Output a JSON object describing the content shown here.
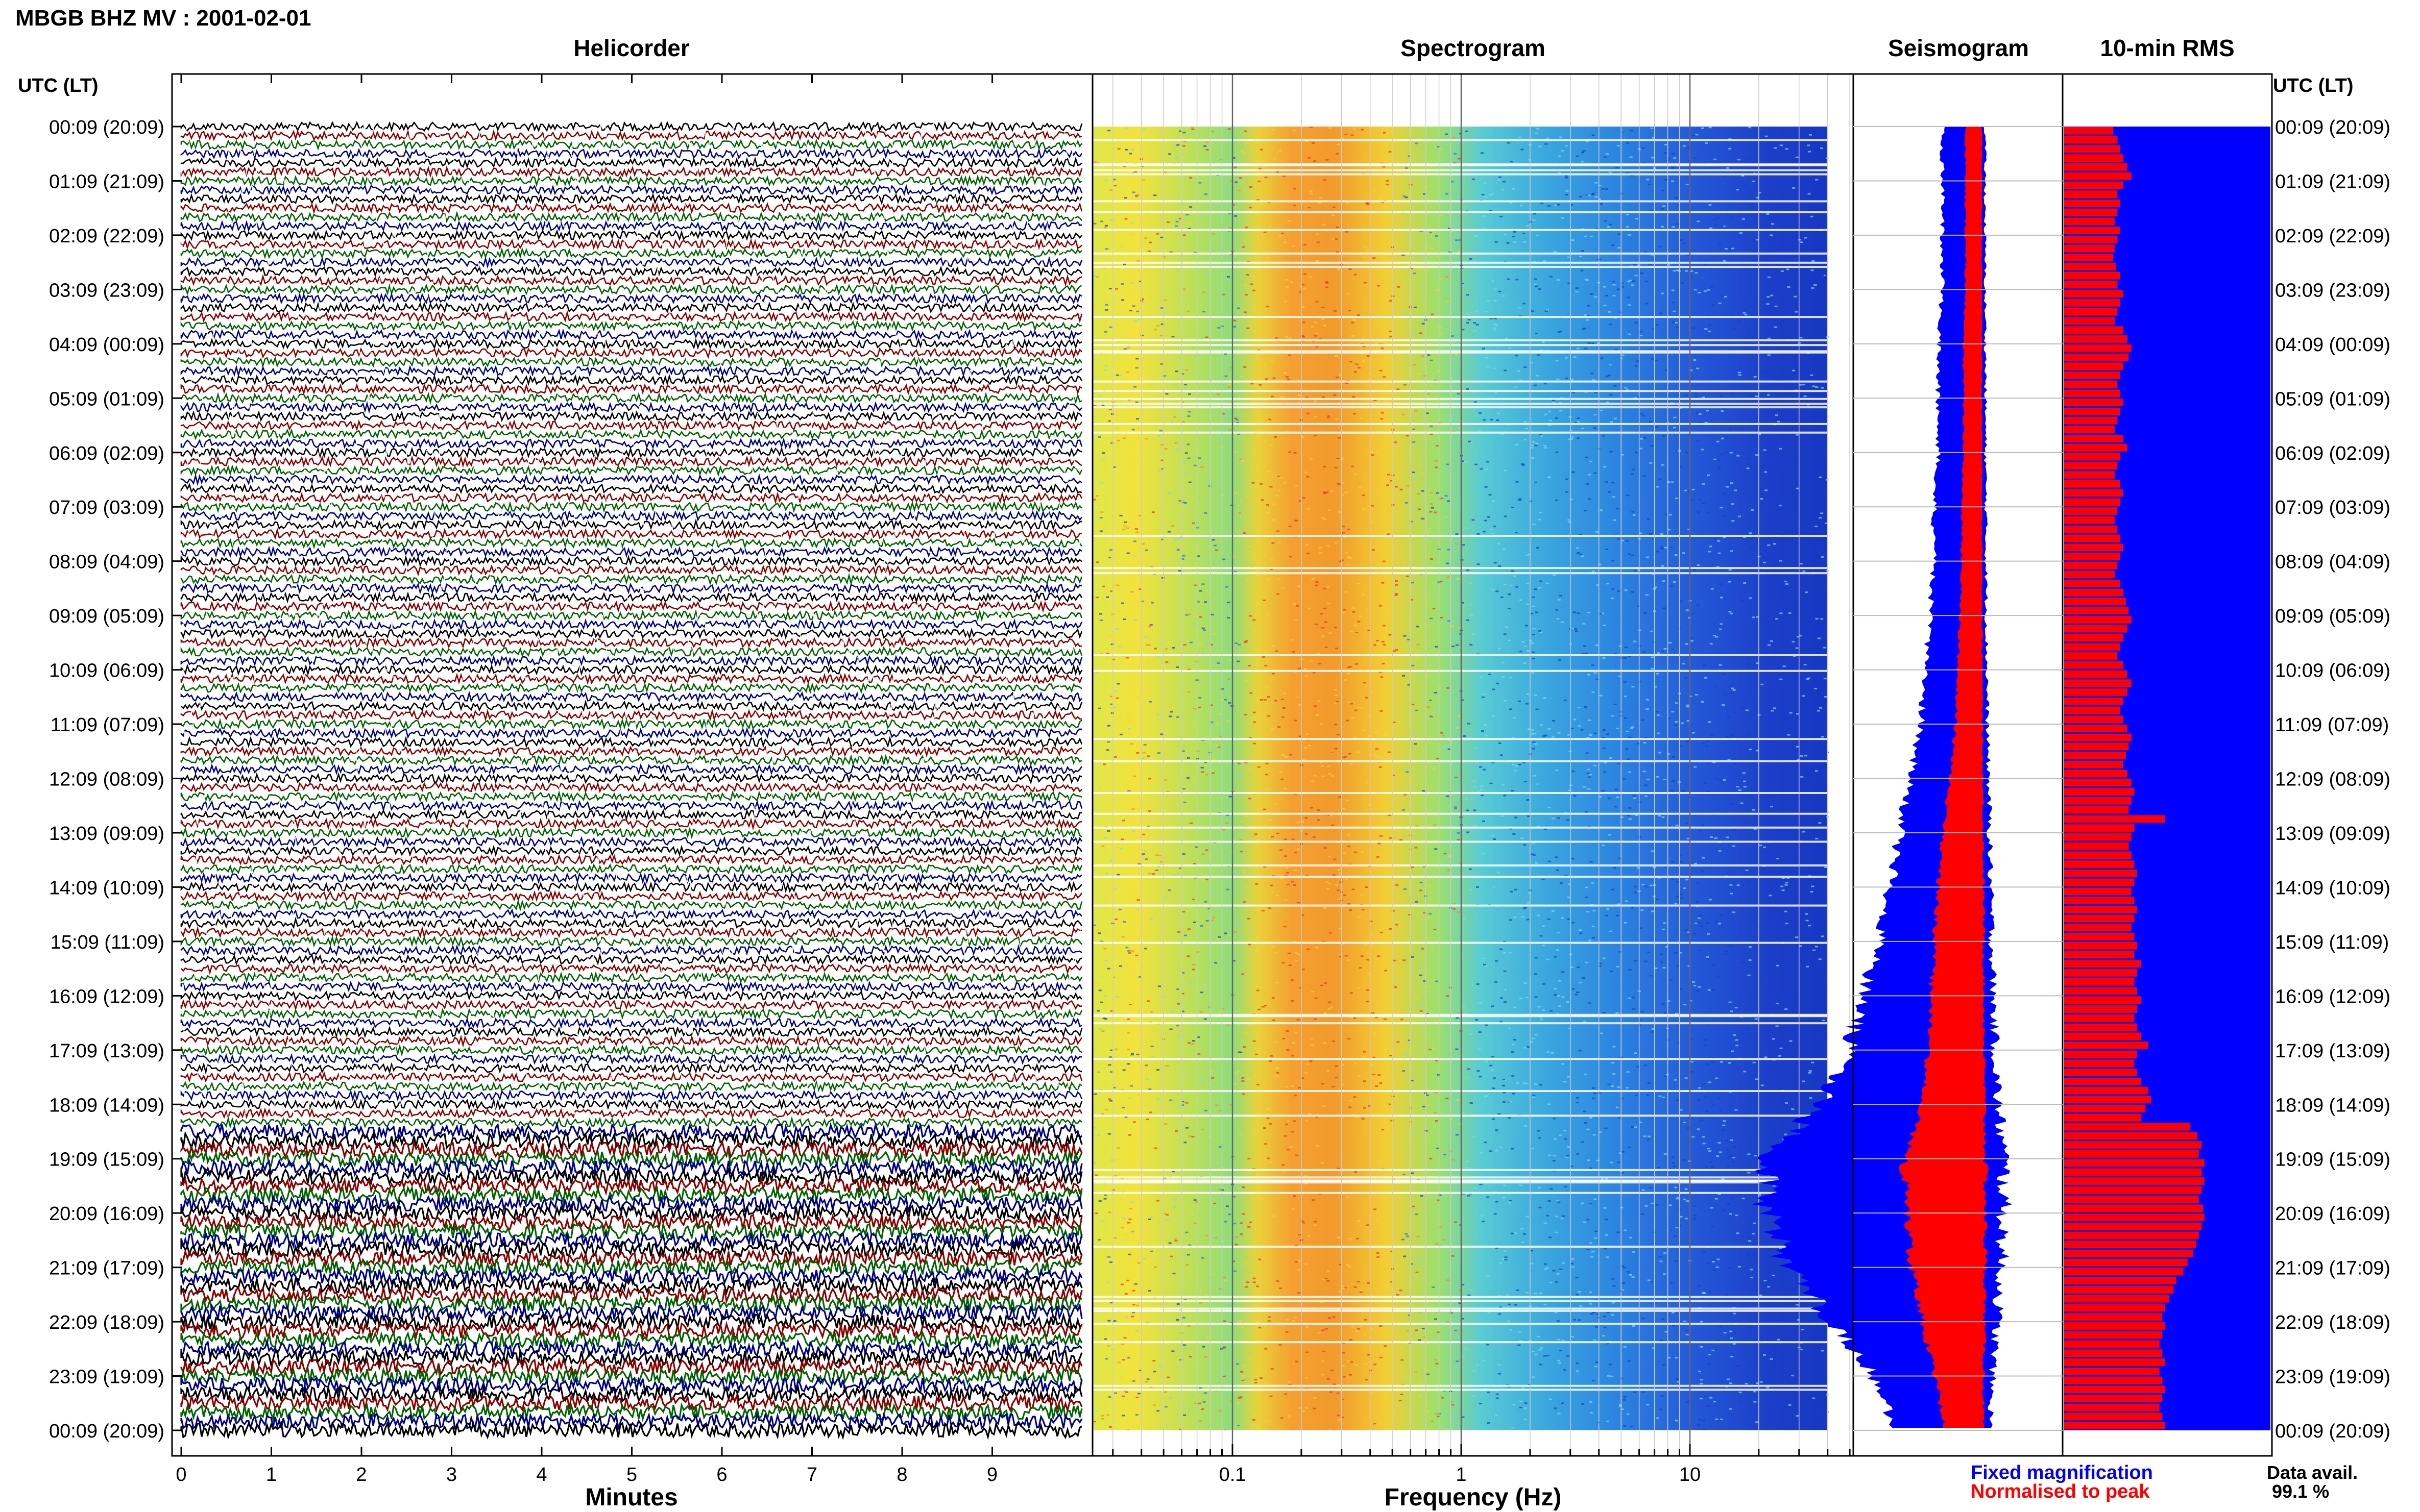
{
  "station_title": "MBGB BHZ MV : 2001-02-01",
  "panels": {
    "helicorder": "Helicorder",
    "spectrogram": "Spectrogram",
    "seismogram": "Seismogram",
    "rms": "10-min RMS"
  },
  "axis_header": "UTC (LT)",
  "time_labels": [
    "00:09 (20:09)",
    "01:09 (21:09)",
    "02:09 (22:09)",
    "03:09 (23:09)",
    "04:09 (00:09)",
    "05:09 (01:09)",
    "06:09 (02:09)",
    "07:09 (03:09)",
    "08:09 (04:09)",
    "09:09 (05:09)",
    "10:09 (06:09)",
    "11:09 (07:09)",
    "12:09 (08:09)",
    "13:09 (09:09)",
    "14:09 (10:09)",
    "15:09 (11:09)",
    "16:09 (12:09)",
    "17:09 (13:09)",
    "18:09 (14:09)",
    "19:09 (15:09)",
    "20:09 (16:09)",
    "21:09 (17:09)",
    "22:09 (18:09)",
    "23:09 (19:09)",
    "00:09 (20:09)"
  ],
  "minutes_ticks": [
    "0",
    "1",
    "2",
    "3",
    "4",
    "5",
    "6",
    "7",
    "8",
    "9"
  ],
  "minutes_label": "Minutes",
  "frequency_ticks": [
    "0.1",
    "1",
    "10"
  ],
  "frequency_label": "Frequency (Hz)",
  "legend": {
    "fixed": "Fixed magnification",
    "normalised": "Normalised to peak",
    "data_avail_label": "Data avail.",
    "data_avail_value": "99.1 %"
  },
  "colors": {
    "trace_colors": [
      "#000000",
      "#cc0000",
      "#ffffff",
      "#0a8a0a",
      "#0000cc"
    ],
    "helicorder_traces": [
      "#000000",
      "#8b0000",
      "#006400",
      "#00008b"
    ],
    "fixed": "#0000ff",
    "normalised": "#ff0000"
  },
  "chart_data": [
    {
      "type": "line",
      "name": "helicorder",
      "x_range_minutes": [
        0,
        10
      ],
      "rows": 144,
      "note_rows_per_hour": 6,
      "loud_from_time": "18:30"
    },
    {
      "type": "heatmap",
      "name": "spectrogram",
      "x_scale": "log",
      "x_range_hz": [
        0.02,
        40
      ],
      "peak_band_hz": [
        0.15,
        0.6
      ]
    },
    {
      "type": "area",
      "name": "seismogram",
      "series": [
        {
          "name": "Fixed magnification",
          "amplitude_profile": [
            0.18,
            0.18,
            0.18,
            0.18,
            0.2,
            0.2,
            0.2,
            0.22,
            0.22,
            0.24,
            0.26,
            0.28,
            0.33,
            0.38,
            0.42,
            0.48,
            0.55,
            0.62,
            0.75,
            1.0,
            1.0,
            0.9,
            0.7,
            0.5,
            0.4
          ]
        },
        {
          "name": "Normalised to peak",
          "amplitude_profile": [
            0.08,
            0.08,
            0.08,
            0.08,
            0.09,
            0.09,
            0.09,
            0.1,
            0.1,
            0.11,
            0.12,
            0.13,
            0.16,
            0.2,
            0.22,
            0.24,
            0.26,
            0.27,
            0.3,
            0.4,
            0.38,
            0.36,
            0.3,
            0.24,
            0.18
          ]
        }
      ]
    },
    {
      "type": "bar",
      "name": "10-min RMS",
      "orientation": "horizontal",
      "values": [
        0.35,
        0.38,
        0.4,
        0.42,
        0.45,
        0.48,
        0.42,
        0.38,
        0.4,
        0.38,
        0.36,
        0.4,
        0.38,
        0.36,
        0.35,
        0.37,
        0.4,
        0.38,
        0.42,
        0.4,
        0.38,
        0.36,
        0.42,
        0.45,
        0.48,
        0.46,
        0.42,
        0.4,
        0.38,
        0.4,
        0.42,
        0.4,
        0.38,
        0.36,
        0.42,
        0.45,
        0.4,
        0.38,
        0.36,
        0.4,
        0.42,
        0.4,
        0.38,
        0.36,
        0.38,
        0.4,
        0.42,
        0.4,
        0.38,
        0.36,
        0.4,
        0.42,
        0.44,
        0.46,
        0.48,
        0.45,
        0.42,
        0.4,
        0.38,
        0.42,
        0.45,
        0.48,
        0.45,
        0.42,
        0.4,
        0.42,
        0.45,
        0.48,
        0.46,
        0.44,
        0.42,
        0.45,
        0.48,
        0.5,
        0.48,
        0.46,
        0.72,
        0.5,
        0.48,
        0.46,
        0.48,
        0.5,
        0.52,
        0.5,
        0.48,
        0.5,
        0.52,
        0.5,
        0.48,
        0.5,
        0.52,
        0.5,
        0.55,
        0.52,
        0.5,
        0.52,
        0.55,
        0.52,
        0.5,
        0.52,
        0.55,
        0.6,
        0.52,
        0.5,
        0.52,
        0.55,
        0.6,
        0.62,
        0.58,
        0.55,
        0.9,
        0.95,
        0.98,
        0.96,
        1.0,
        0.98,
        1.0,
        0.98,
        0.96,
        0.99,
        1.0,
        0.98,
        0.96,
        0.94,
        0.92,
        0.88,
        0.85,
        0.8,
        0.78,
        0.75,
        0.72,
        0.7,
        0.72,
        0.7,
        0.68,
        0.7,
        0.72,
        0.68,
        0.7,
        0.72,
        0.7,
        0.68,
        0.7,
        0.72
      ]
    }
  ]
}
